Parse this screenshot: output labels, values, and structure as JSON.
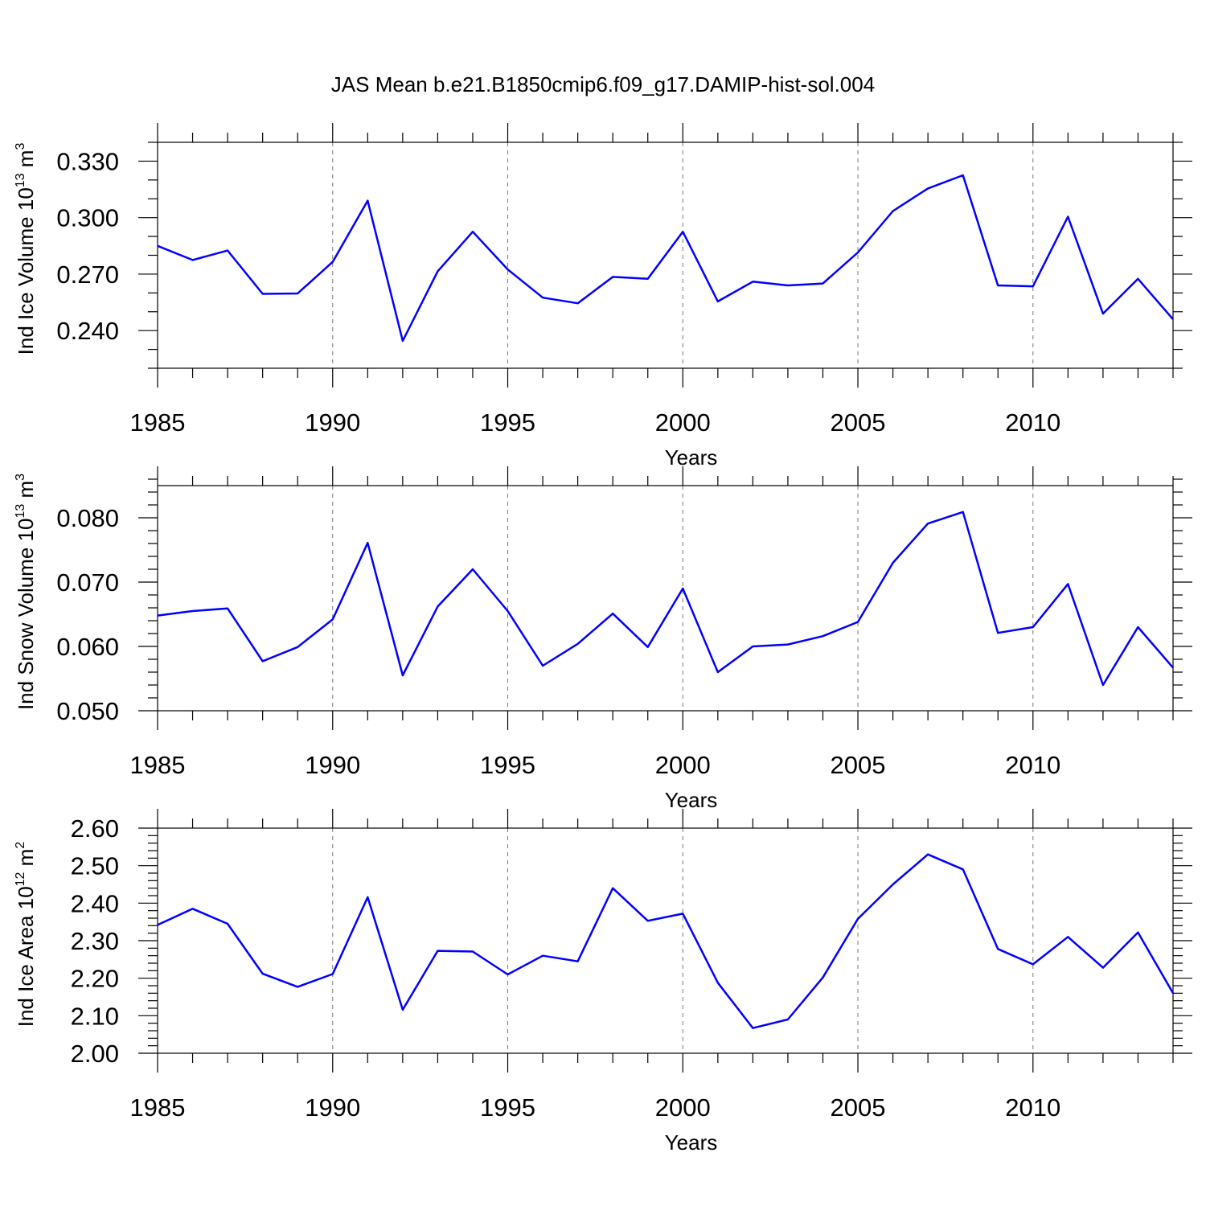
{
  "chart_data": {
    "title": "JAS Mean b.e21.B1850cmip6.f09_g17.DAMIP-hist-sol.004",
    "panels": [
      {
        "type": "line",
        "ylabel_prefix": "Ind Ice Volume 10",
        "ylabel_exp": "13",
        "ylabel_unit": " m",
        "ylabel_unit_exp": "3",
        "xlabel": "Years",
        "xlim": [
          1985,
          2014
        ],
        "ylim": [
          0.22,
          0.34
        ],
        "yticks": [
          "0.240",
          "0.270",
          "0.300",
          "0.330"
        ],
        "ytick_values": [
          0.24,
          0.27,
          0.3,
          0.33
        ],
        "yminor_step": 0.01,
        "xticks": [
          "1985",
          "1990",
          "1995",
          "2000",
          "2005",
          "2010"
        ],
        "xtick_values": [
          1985,
          1990,
          1995,
          2000,
          2005,
          2010
        ],
        "series": [
          {
            "name": "Ind Ice Volume",
            "color": "#0000ff",
            "x": [
              1985,
              1986,
              1987,
              1988,
              1989,
              1990,
              1991,
              1992,
              1993,
              1994,
              1995,
              1996,
              1997,
              1998,
              1999,
              2000,
              2001,
              2002,
              2003,
              2004,
              2005,
              2006,
              2007,
              2008,
              2009,
              2010,
              2011,
              2012,
              2013,
              2014
            ],
            "values": [
              0.285,
              0.2775,
              0.2825,
              0.2595,
              0.2597,
              0.2765,
              0.309,
              0.2345,
              0.2715,
              0.2925,
              0.2725,
              0.2575,
              0.2545,
              0.2685,
              0.2675,
              0.2925,
              0.2555,
              0.266,
              0.264,
              0.265,
              0.2815,
              0.3035,
              0.3155,
              0.3225,
              0.264,
              0.2635,
              0.3005,
              0.249,
              0.2675,
              0.246
            ]
          }
        ]
      },
      {
        "type": "line",
        "ylabel_prefix": "Ind Snow Volume 10",
        "ylabel_exp": "13",
        "ylabel_unit": " m",
        "ylabel_unit_exp": "3",
        "xlabel": "Years",
        "xlim": [
          1985,
          2014
        ],
        "ylim": [
          0.05,
          0.085
        ],
        "yticks": [
          "0.050",
          "0.060",
          "0.070",
          "0.080"
        ],
        "ytick_values": [
          0.05,
          0.06,
          0.07,
          0.08
        ],
        "yminor_step": 0.002,
        "xticks": [
          "1985",
          "1990",
          "1995",
          "2000",
          "2005",
          "2010"
        ],
        "xtick_values": [
          1985,
          1990,
          1995,
          2000,
          2005,
          2010
        ],
        "series": [
          {
            "name": "Ind Snow Volume",
            "color": "#0000ff",
            "x": [
              1985,
              1986,
              1987,
              1988,
              1989,
              1990,
              1991,
              1992,
              1993,
              1994,
              1995,
              1996,
              1997,
              1998,
              1999,
              2000,
              2001,
              2002,
              2003,
              2004,
              2005,
              2006,
              2007,
              2008,
              2009,
              2010,
              2011,
              2012,
              2013,
              2014
            ],
            "values": [
              0.0648,
              0.0655,
              0.0659,
              0.0577,
              0.0599,
              0.0642,
              0.0761,
              0.0555,
              0.0662,
              0.072,
              0.0655,
              0.057,
              0.0604,
              0.0651,
              0.0599,
              0.069,
              0.056,
              0.06,
              0.0603,
              0.0616,
              0.0638,
              0.073,
              0.0791,
              0.0809,
              0.0621,
              0.063,
              0.0697,
              0.054,
              0.063,
              0.0567
            ]
          }
        ]
      },
      {
        "type": "line",
        "ylabel_prefix": "Ind Ice Area 10",
        "ylabel_exp": "12",
        "ylabel_unit": " m",
        "ylabel_unit_exp": "2",
        "xlabel": "Years",
        "xlim": [
          1985,
          2014
        ],
        "ylim": [
          2.0,
          2.6
        ],
        "yticks": [
          "2.00",
          "2.10",
          "2.20",
          "2.30",
          "2.40",
          "2.50",
          "2.60"
        ],
        "ytick_values": [
          2.0,
          2.1,
          2.2,
          2.3,
          2.4,
          2.5,
          2.6
        ],
        "yminor_step": 0.02,
        "xticks": [
          "1985",
          "1990",
          "1995",
          "2000",
          "2005",
          "2010"
        ],
        "xtick_values": [
          1985,
          1990,
          1995,
          2000,
          2005,
          2010
        ],
        "series": [
          {
            "name": "Ind Ice Area",
            "color": "#0000ff",
            "x": [
              1985,
              1986,
              1987,
              1988,
              1989,
              1990,
              1991,
              1992,
              1993,
              1994,
              1995,
              1996,
              1997,
              1998,
              1999,
              2000,
              2001,
              2002,
              2003,
              2004,
              2005,
              2006,
              2007,
              2008,
              2009,
              2010,
              2011,
              2012,
              2013,
              2014
            ],
            "values": [
              2.342,
              2.385,
              2.345,
              2.212,
              2.177,
              2.211,
              2.416,
              2.116,
              2.273,
              2.271,
              2.21,
              2.26,
              2.245,
              2.44,
              2.353,
              2.372,
              2.188,
              2.067,
              2.09,
              2.202,
              2.358,
              2.45,
              2.53,
              2.49,
              2.278,
              2.237,
              2.31,
              2.228,
              2.322,
              2.16
            ]
          }
        ]
      }
    ]
  }
}
